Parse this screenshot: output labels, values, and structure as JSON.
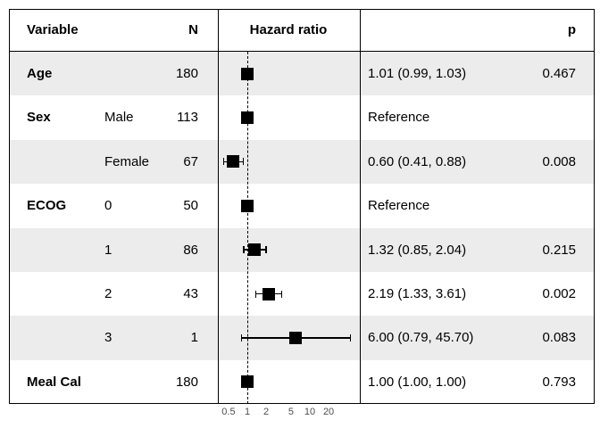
{
  "chart_data": {
    "type": "scatter",
    "subtype": "forest_plot",
    "x_scale": "log",
    "x_axis_label": "Hazard ratio",
    "reference_line": 1,
    "x_ticks": [
      {
        "value": 0.5,
        "label": "0.5"
      },
      {
        "value": 1,
        "label": "1"
      },
      {
        "value": 2,
        "label": "2"
      },
      {
        "value": 5,
        "label": "5"
      },
      {
        "value": 10,
        "label": "10"
      },
      {
        "value": 20,
        "label": "20"
      }
    ],
    "columns": {
      "variable": "Variable",
      "n": "N",
      "plot": "Hazard ratio",
      "p": "p"
    },
    "rows": [
      {
        "variable": "Age",
        "level": "",
        "n": "180",
        "hr": 1.01,
        "ci_low": 0.99,
        "ci_high": 1.03,
        "estimate": "1.01 (0.99, 1.03)",
        "p": "0.467",
        "reference": false
      },
      {
        "variable": "Sex",
        "level": "Male",
        "n": "113",
        "hr": 1,
        "ci_low": null,
        "ci_high": null,
        "estimate": "Reference",
        "p": "",
        "reference": true
      },
      {
        "variable": "",
        "level": "Female",
        "n": "67",
        "hr": 0.6,
        "ci_low": 0.41,
        "ci_high": 0.88,
        "estimate": "0.60 (0.41, 0.88)",
        "p": "0.008",
        "reference": false
      },
      {
        "variable": "ECOG",
        "level": "0",
        "n": "50",
        "hr": 1,
        "ci_low": null,
        "ci_high": null,
        "estimate": "Reference",
        "p": "",
        "reference": true
      },
      {
        "variable": "",
        "level": "1",
        "n": "86",
        "hr": 1.32,
        "ci_low": 0.85,
        "ci_high": 2.04,
        "estimate": "1.32 (0.85, 2.04)",
        "p": "0.215",
        "reference": false
      },
      {
        "variable": "",
        "level": "2",
        "n": "43",
        "hr": 2.19,
        "ci_low": 1.33,
        "ci_high": 3.61,
        "estimate": "2.19 (1.33, 3.61)",
        "p": "0.002",
        "reference": false
      },
      {
        "variable": "",
        "level": "3",
        "n": "1",
        "hr": 6.0,
        "ci_low": 0.79,
        "ci_high": 45.7,
        "estimate": "6.00 (0.79, 45.70)",
        "p": "0.083",
        "reference": false
      },
      {
        "variable": "Meal Cal",
        "level": "",
        "n": "180",
        "hr": 1.0,
        "ci_low": 1.0,
        "ci_high": 1.0,
        "estimate": "1.00 (1.00, 1.00)",
        "p": "0.793",
        "reference": false
      }
    ]
  },
  "colors": {
    "background": "#ffffff",
    "stripe": "#ececec",
    "marker": "#000000",
    "border": "#000000",
    "text": "#000000",
    "axis_text": "#4d4d4d"
  }
}
